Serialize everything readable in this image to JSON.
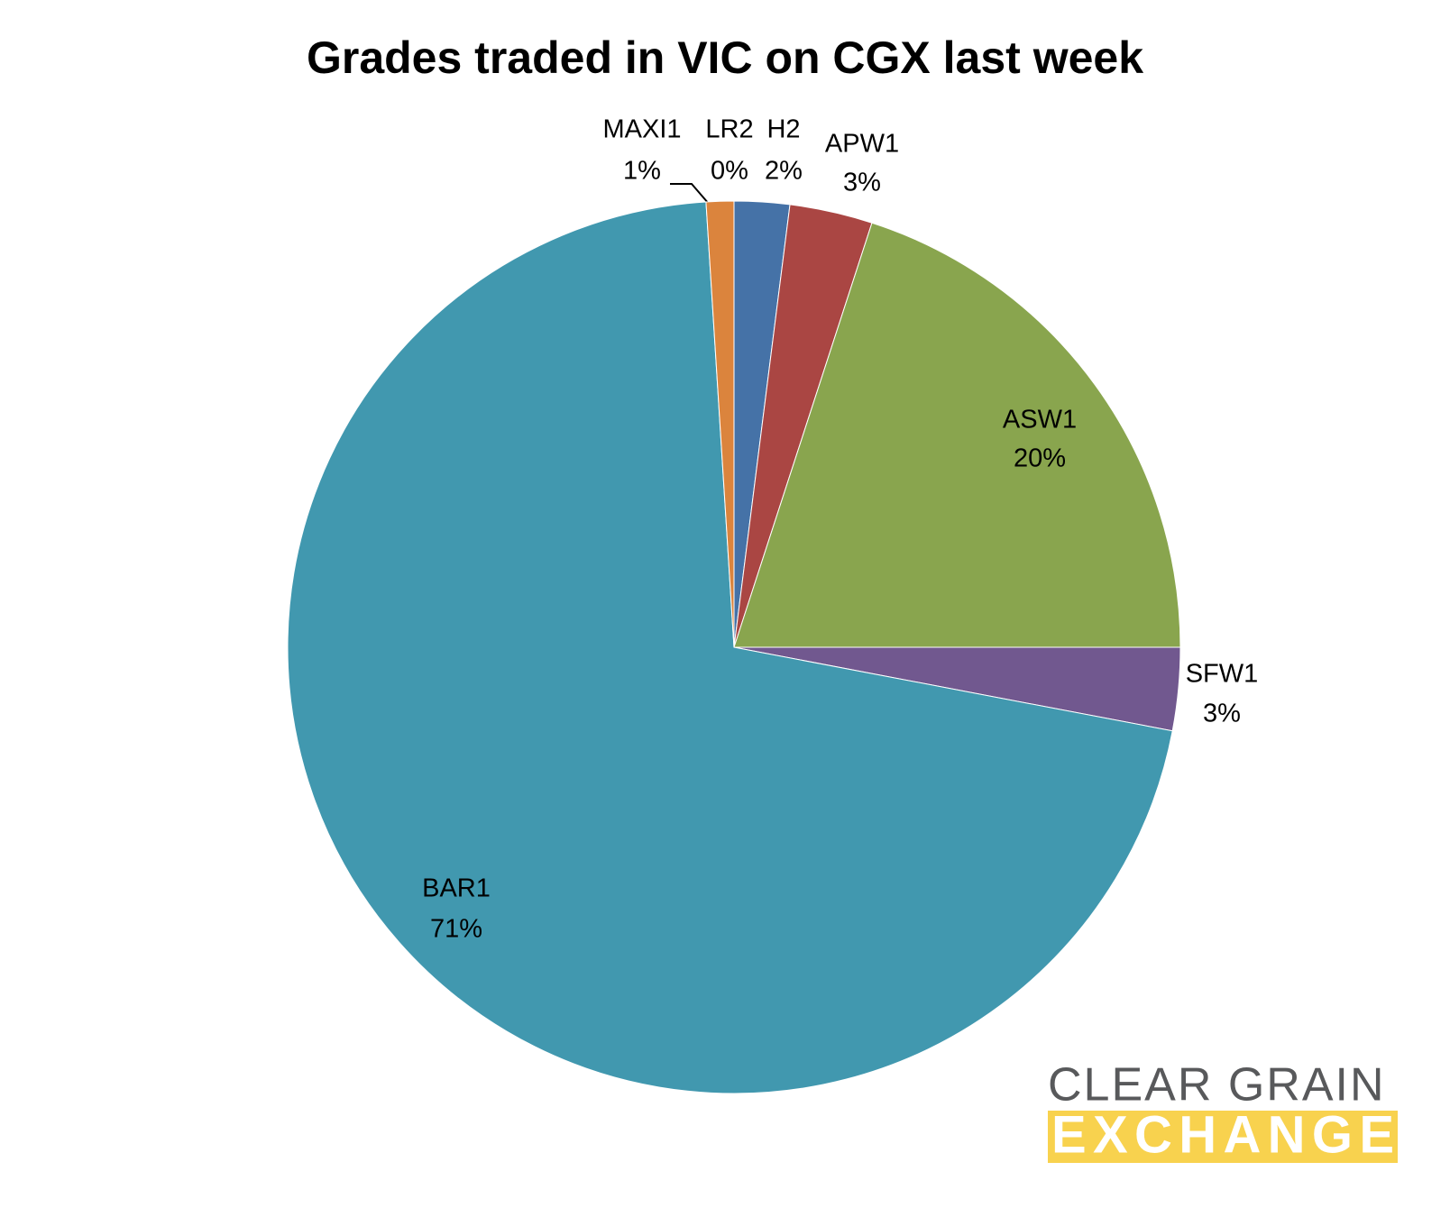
{
  "chart_data": {
    "type": "pie",
    "title": "Grades traded in VIC on CGX last week",
    "categories": [
      "LR2",
      "H2",
      "APW1",
      "ASW1",
      "SFW1",
      "BAR1",
      "MAXI1"
    ],
    "values": [
      0,
      2,
      3,
      20,
      3,
      71,
      1
    ],
    "value_labels": [
      "0%",
      "2%",
      "3%",
      "20%",
      "3%",
      "71%",
      "1%"
    ],
    "colors": [
      "#95b3d7",
      "#4572a7",
      "#aa4643",
      "#89a54e",
      "#71588f",
      "#4198af",
      "#db843d"
    ]
  },
  "logo": {
    "line1": "CLEAR GRAIN",
    "line2": "EXCHANGE"
  }
}
